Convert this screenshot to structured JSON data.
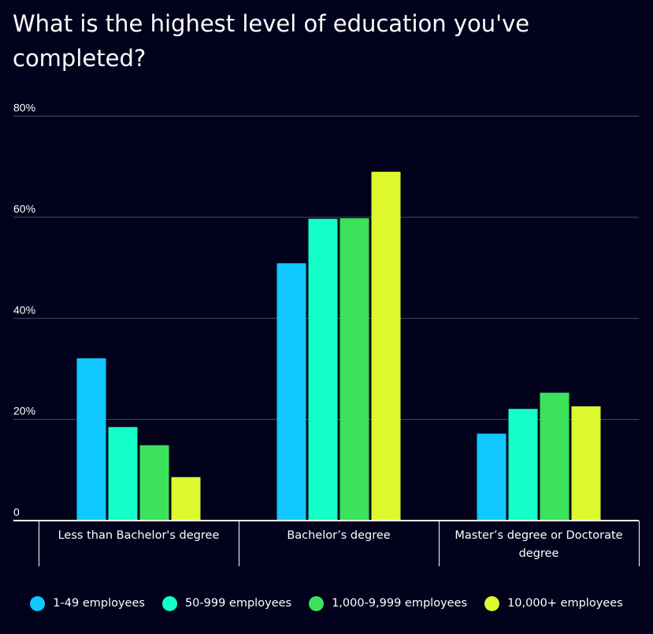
{
  "chart_data": {
    "type": "bar",
    "title": "What is the highest level of education you've completed?",
    "categories": [
      "Less than Bachelor's degree",
      "Bachelor’s degree",
      "Master’s degree or Doctorate degree"
    ],
    "category_lines": [
      [
        "Less than Bachelor's degree"
      ],
      [
        "Bachelor’s degree"
      ],
      [
        "Master’s degree or Doctorate",
        "degree"
      ]
    ],
    "series": [
      {
        "name": "1-49 employees",
        "color": "#10c8ff",
        "values": [
          32.1,
          50.9,
          17.2
        ]
      },
      {
        "name": "50-999 employees",
        "color": "#13ffc7",
        "values": [
          18.5,
          59.7,
          22.1
        ]
      },
      {
        "name": "1,000-9,999 employees",
        "color": "#3de25b",
        "values": [
          14.9,
          59.8,
          25.3
        ]
      },
      {
        "name": "10,000+ employees",
        "color": "#ddf82d",
        "values": [
          8.6,
          69.0,
          22.6
        ]
      }
    ],
    "ylim": [
      0,
      80
    ],
    "yticks": [
      0,
      20,
      40,
      60,
      80
    ],
    "ytick_labels": [
      "0",
      "20%",
      "40%",
      "60%",
      "80%"
    ],
    "xlabel": "",
    "ylabel": "",
    "grid": true,
    "legend_position": "bottom"
  }
}
